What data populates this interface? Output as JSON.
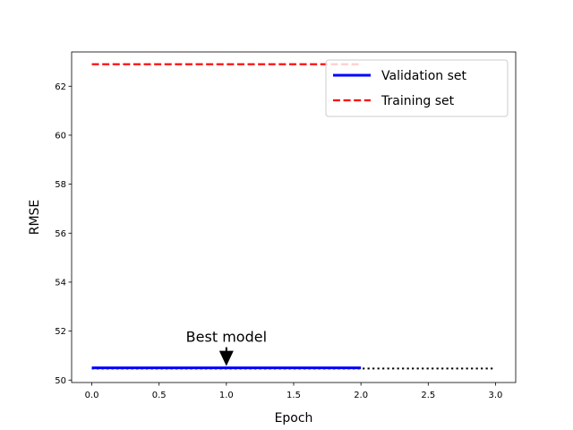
{
  "chart_data": {
    "type": "line",
    "title": "",
    "xlabel": "Epoch",
    "ylabel": "RMSE",
    "xlim": [
      -0.15,
      3.15
    ],
    "ylim": [
      49.9,
      63.4
    ],
    "xticks": [
      0.0,
      0.5,
      1.0,
      1.5,
      2.0,
      2.5,
      3.0
    ],
    "xtick_labels": [
      "0.0",
      "0.5",
      "1.0",
      "1.5",
      "2.0",
      "2.5",
      "3.0"
    ],
    "yticks": [
      50,
      52,
      54,
      56,
      58,
      60,
      62
    ],
    "ytick_labels": [
      "50",
      "52",
      "54",
      "56",
      "58",
      "60",
      "62"
    ],
    "grid": false,
    "legend_position": "upper-right",
    "series": [
      {
        "name": "Validation set",
        "style": "solid",
        "color": "#0000ff",
        "x": [
          0,
          1,
          2
        ],
        "y": [
          50.5,
          50.5,
          50.5
        ]
      },
      {
        "name": "Training set",
        "style": "dashed",
        "color": "#ff0000",
        "x": [
          0,
          1,
          2
        ],
        "y": [
          62.9,
          62.9,
          62.9
        ]
      },
      {
        "name": "",
        "style": "dotted",
        "color": "#000000",
        "x": [
          0,
          3
        ],
        "y": [
          50.47,
          50.47
        ]
      }
    ],
    "annotations": [
      {
        "text": "Best model",
        "point_x": 1,
        "point_y": 50.5,
        "arrow_color": "#000000"
      }
    ]
  }
}
